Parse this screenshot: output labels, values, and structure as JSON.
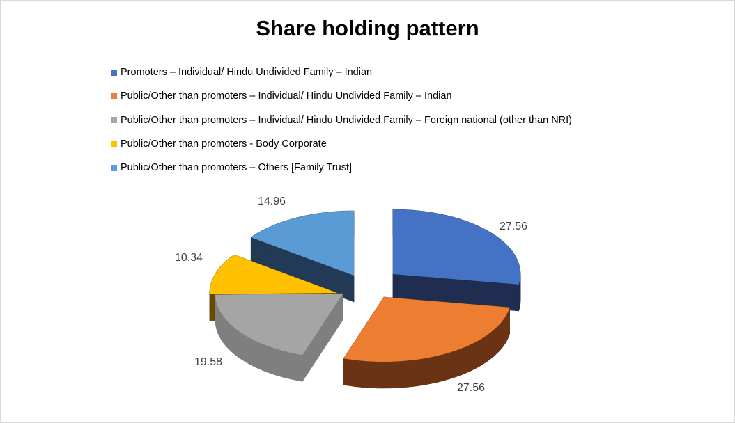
{
  "chart_data": {
    "type": "pie",
    "style": "3d-exploded",
    "title": "Share holding pattern",
    "legend_position": "top",
    "categories": [
      "Promoters – Individual/ Hindu Undivided Family – Indian",
      "Public/Other than promoters – Individual/ Hindu Undivided Family – Indian",
      "Public/Other than promoters – Individual/ Hindu Undivided Family – Foreign national (other than NRI)",
      "Public/Other than promoters - Body Corporate",
      "Public/Other than promoters – Others [Family Trust]"
    ],
    "values": [
      27.56,
      27.56,
      19.58,
      10.34,
      14.96
    ],
    "data_labels": [
      "27.56",
      "27.56",
      "19.58",
      "10.34",
      "14.96"
    ],
    "colors": [
      "#4472c4",
      "#ed7d31",
      "#a5a5a5",
      "#ffc000",
      "#5b9bd5"
    ],
    "side_colors": [
      "#1f2d50",
      "#6a3414",
      "#7f7f7f",
      "#664c00",
      "#223a55"
    ]
  }
}
